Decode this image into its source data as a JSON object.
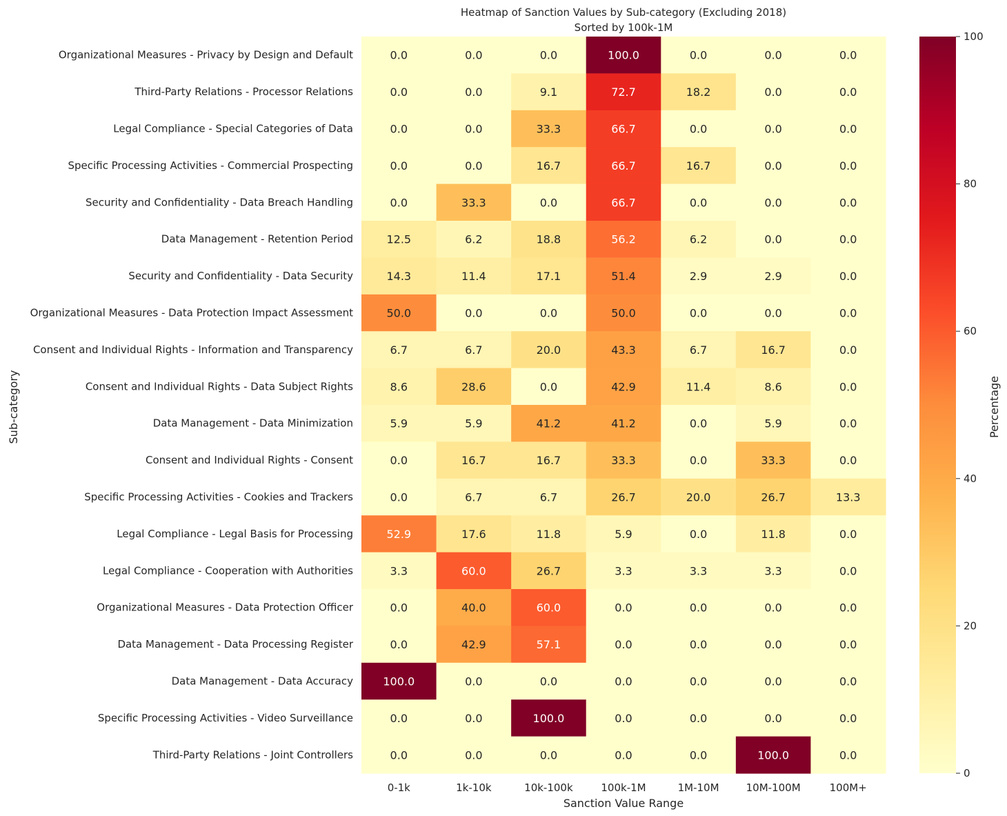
{
  "chart_data": {
    "type": "heatmap",
    "title": "Heatmap of Sanction Values by Sub-category (Excluding 2018)",
    "subtitle": "Sorted by 100k-1M",
    "xlabel": "Sanction Value Range",
    "ylabel": "Sub-category",
    "colorbar_label": "Percentage",
    "colorbar_ticks": [
      0,
      20,
      40,
      60,
      80,
      100
    ],
    "colorbar_range": [
      0,
      100
    ],
    "colormap": "YlOrRd",
    "columns": [
      "0-1k",
      "1k-10k",
      "10k-100k",
      "100k-1M",
      "1M-10M",
      "10M-100M",
      "100M+"
    ],
    "rows": [
      "Organizational Measures - Privacy by Design and Default",
      "Third-Party Relations - Processor Relations",
      "Legal Compliance - Special Categories of Data",
      "Specific Processing Activities - Commercial Prospecting",
      "Security and Confidentiality - Data Breach Handling",
      "Data Management - Retention Period",
      "Security and Confidentiality - Data Security",
      "Organizational Measures - Data Protection Impact Assessment",
      "Consent and Individual Rights - Information and Transparency",
      "Consent and Individual Rights - Data Subject Rights",
      "Data Management - Data Minimization",
      "Consent and Individual Rights - Consent",
      "Specific Processing Activities - Cookies and Trackers",
      "Legal Compliance - Legal Basis for Processing",
      "Legal Compliance - Cooperation with Authorities",
      "Organizational Measures - Data Protection Officer",
      "Data Management - Data Processing Register",
      "Data Management - Data Accuracy",
      "Specific Processing Activities - Video Surveillance",
      "Third-Party Relations - Joint Controllers"
    ],
    "values": [
      [
        0.0,
        0.0,
        0.0,
        100.0,
        0.0,
        0.0,
        0.0
      ],
      [
        0.0,
        0.0,
        9.1,
        72.7,
        18.2,
        0.0,
        0.0
      ],
      [
        0.0,
        0.0,
        33.3,
        66.7,
        0.0,
        0.0,
        0.0
      ],
      [
        0.0,
        0.0,
        16.7,
        66.7,
        16.7,
        0.0,
        0.0
      ],
      [
        0.0,
        33.3,
        0.0,
        66.7,
        0.0,
        0.0,
        0.0
      ],
      [
        12.5,
        6.2,
        18.8,
        56.2,
        6.2,
        0.0,
        0.0
      ],
      [
        14.3,
        11.4,
        17.1,
        51.4,
        2.9,
        2.9,
        0.0
      ],
      [
        50.0,
        0.0,
        0.0,
        50.0,
        0.0,
        0.0,
        0.0
      ],
      [
        6.7,
        6.7,
        20.0,
        43.3,
        6.7,
        16.7,
        0.0
      ],
      [
        8.6,
        28.6,
        0.0,
        42.9,
        11.4,
        8.6,
        0.0
      ],
      [
        5.9,
        5.9,
        41.2,
        41.2,
        0.0,
        5.9,
        0.0
      ],
      [
        0.0,
        16.7,
        16.7,
        33.3,
        0.0,
        33.3,
        0.0
      ],
      [
        0.0,
        6.7,
        6.7,
        26.7,
        20.0,
        26.7,
        13.3
      ],
      [
        52.9,
        17.6,
        11.8,
        5.9,
        0.0,
        11.8,
        0.0
      ],
      [
        3.3,
        60.0,
        26.7,
        3.3,
        3.3,
        3.3,
        0.0
      ],
      [
        0.0,
        40.0,
        60.0,
        0.0,
        0.0,
        0.0,
        0.0
      ],
      [
        0.0,
        42.9,
        57.1,
        0.0,
        0.0,
        0.0,
        0.0
      ],
      [
        100.0,
        0.0,
        0.0,
        0.0,
        0.0,
        0.0,
        0.0
      ],
      [
        0.0,
        0.0,
        100.0,
        0.0,
        0.0,
        0.0,
        0.0
      ],
      [
        0.0,
        0.0,
        0.0,
        0.0,
        0.0,
        100.0,
        0.0
      ]
    ]
  }
}
